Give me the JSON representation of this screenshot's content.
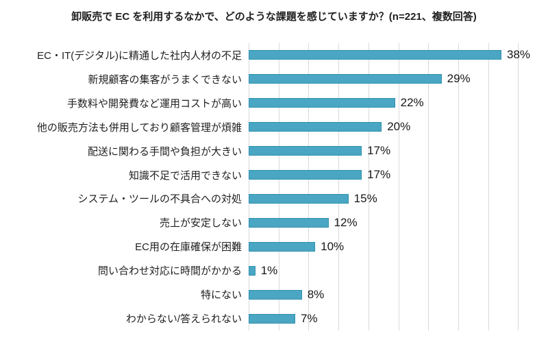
{
  "title": "卸販売で EC を利用するなかで、どのような課題を感じていますか？(n=221、複数回答)",
  "colors": {
    "bar_fill": "#4aa6c2",
    "bar_border": "#2f92b0",
    "gridline": "#d9d9d9",
    "text": "#1f1f1f"
  },
  "chart_data": {
    "type": "bar",
    "orientation": "horizontal",
    "title": "卸販売で EC を利用するなかで、どのような課題を感じていますか？(n=221、複数回答)",
    "categories": [
      "EC・IT(デジタル)に精通した社内人材の不足",
      "新規顧客の集客がうまくできない",
      "手数料や開発費など運用コストが高い",
      "他の販売方法も併用しており顧客管理が煩雑",
      "配送に関わる手間や負担が大きい",
      "知識不足で活用できない",
      "システム・ツールの不具合への対処",
      "売上が安定しない",
      "EC用の在庫確保が困難",
      "問い合わせ対応に時間がかかる",
      "特にない",
      "わからない/答えられない"
    ],
    "values": [
      38,
      29,
      22,
      20,
      17,
      17,
      15,
      12,
      10,
      1,
      8,
      7
    ],
    "unit": "%",
    "data_labels": [
      "38%",
      "29%",
      "22%",
      "20%",
      "17%",
      "17%",
      "15%",
      "12%",
      "10%",
      "1%",
      "8%",
      "7%"
    ],
    "xlabel": "",
    "ylabel": "",
    "xlim": [
      0,
      45
    ],
    "gridline_count": 11,
    "grid": "vertical-only",
    "legend": "none",
    "tick_labels_shown": false
  }
}
